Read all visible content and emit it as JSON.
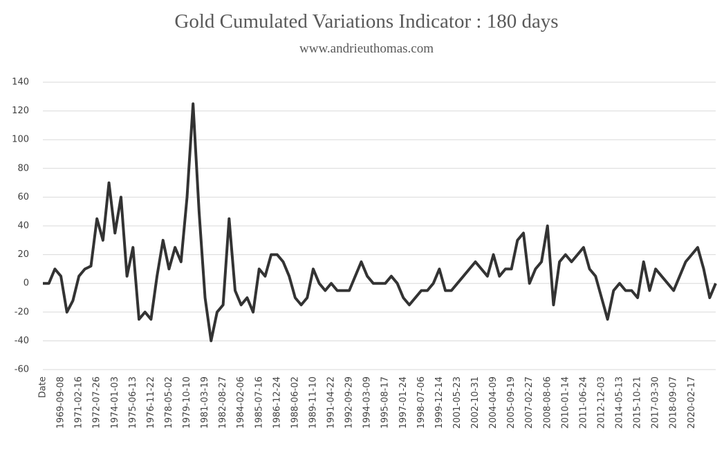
{
  "chart_data": {
    "type": "line",
    "title": "Gold Cumulated Variations Indicator : 180 days",
    "subtitle": "www.andrieuthomas.com",
    "categories": [
      "Date",
      null,
      null,
      "1969-09-08",
      null,
      null,
      "1971-02-16",
      null,
      null,
      "1972-07-26",
      null,
      null,
      "1974-01-03",
      null,
      null,
      "1975-06-13",
      null,
      null,
      "1976-11-22",
      null,
      null,
      "1978-05-02",
      null,
      null,
      "1979-10-10",
      null,
      null,
      "1981-03-19",
      null,
      null,
      "1982-08-27",
      null,
      null,
      "1984-02-06",
      null,
      null,
      "1985-07-16",
      null,
      null,
      "1986-12-24",
      null,
      null,
      "1988-06-02",
      null,
      null,
      "1989-11-10",
      null,
      null,
      "1991-04-22",
      null,
      null,
      "1992-09-29",
      null,
      null,
      "1994-03-09",
      null,
      null,
      "1995-08-17",
      null,
      null,
      "1997-01-24",
      null,
      null,
      "1998-07-06",
      null,
      null,
      "1999-12-14",
      null,
      null,
      "2001-05-23",
      null,
      null,
      "2002-10-31",
      null,
      null,
      "2004-04-09",
      null,
      null,
      "2005-09-19",
      null,
      null,
      "2007-02-27",
      null,
      null,
      "2008-08-06",
      null,
      null,
      "2010-01-14",
      null,
      null,
      "2011-06-24",
      null,
      null,
      "2012-12-03",
      null,
      null,
      "2014-05-13",
      null,
      null,
      "2015-10-21",
      null,
      null,
      "2017-03-30",
      null,
      null,
      "2018-09-07",
      null,
      null,
      "2020-02-17",
      null,
      null,
      null,
      null
    ],
    "values": [
      0,
      0,
      10,
      5,
      -20,
      -12,
      5,
      10,
      12,
      45,
      30,
      70,
      35,
      60,
      5,
      25,
      -25,
      -20,
      -25,
      5,
      30,
      10,
      25,
      15,
      60,
      125,
      50,
      -10,
      -40,
      -20,
      -15,
      45,
      -5,
      -15,
      -10,
      -20,
      10,
      5,
      20,
      20,
      15,
      5,
      -10,
      -15,
      -10,
      10,
      0,
      -5,
      0,
      -5,
      -5,
      -5,
      5,
      15,
      5,
      0,
      0,
      0,
      5,
      0,
      -10,
      -15,
      -10,
      -5,
      -5,
      0,
      10,
      -5,
      -5,
      0,
      5,
      10,
      15,
      10,
      5,
      20,
      5,
      10,
      10,
      30,
      35,
      0,
      10,
      15,
      40,
      -15,
      15,
      20,
      15,
      20,
      25,
      10,
      5,
      -10,
      -25,
      -5,
      0,
      -5,
      -5,
      -10,
      15,
      -5,
      10,
      5,
      0,
      -5,
      5,
      15,
      20,
      25,
      10,
      -10,
      0
    ],
    "color": "#333333",
    "ylim": [
      -60,
      140
    ],
    "yticks": [
      -60,
      -40,
      -20,
      0,
      20,
      40,
      60,
      80,
      100,
      120,
      140
    ],
    "grid": true
  }
}
